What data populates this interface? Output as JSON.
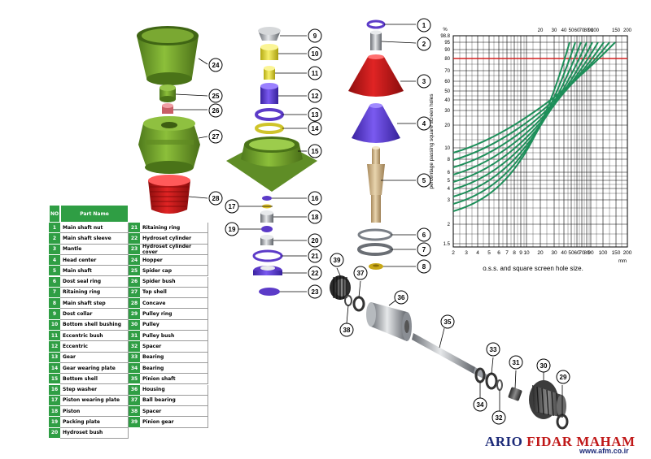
{
  "table": {
    "header_no": "NO",
    "header_name": "Part Name",
    "parts": [
      {
        "no": "1",
        "name": "Main shaft nut"
      },
      {
        "no": "2",
        "name": "Main shaft sleeve"
      },
      {
        "no": "3",
        "name": "Mantle"
      },
      {
        "no": "4",
        "name": "Head center"
      },
      {
        "no": "5",
        "name": "Main shaft"
      },
      {
        "no": "6",
        "name": "Dost seal ring"
      },
      {
        "no": "7",
        "name": "Ritaining ring"
      },
      {
        "no": "8",
        "name": "Main shaft step"
      },
      {
        "no": "9",
        "name": "Dost collar"
      },
      {
        "no": "10",
        "name": "Bottom shell bushing"
      },
      {
        "no": "11",
        "name": "Eccentric bush"
      },
      {
        "no": "12",
        "name": "Eccentric"
      },
      {
        "no": "13",
        "name": "Gear"
      },
      {
        "no": "14",
        "name": "Gear wearing plate"
      },
      {
        "no": "15",
        "name": "Bottom shell"
      },
      {
        "no": "16",
        "name": "Step washer"
      },
      {
        "no": "17",
        "name": "Piston wearing plate"
      },
      {
        "no": "18",
        "name": "Piston"
      },
      {
        "no": "19",
        "name": "Packing plate"
      },
      {
        "no": "20",
        "name": "Hydroset bush"
      },
      {
        "no": "21",
        "name": "Ritaining ring"
      },
      {
        "no": "22",
        "name": "Hydroset cylinder"
      },
      {
        "no": "23",
        "name": "Hydroset cylinder cover"
      },
      {
        "no": "24",
        "name": "Hopper"
      },
      {
        "no": "25",
        "name": "Spider cap"
      },
      {
        "no": "26",
        "name": "Spider bush"
      },
      {
        "no": "27",
        "name": "Top shell"
      },
      {
        "no": "28",
        "name": "Concave"
      },
      {
        "no": "29",
        "name": "Pulley ring"
      },
      {
        "no": "30",
        "name": "Pulley"
      },
      {
        "no": "31",
        "name": "Pulley bush"
      },
      {
        "no": "32",
        "name": "Spacer"
      },
      {
        "no": "33",
        "name": "Bearing"
      },
      {
        "no": "34",
        "name": "Bearing"
      },
      {
        "no": "35",
        "name": "Pinion shaft"
      },
      {
        "no": "36",
        "name": "Housing"
      },
      {
        "no": "37",
        "name": "Ball bearing"
      },
      {
        "no": "38",
        "name": "Spacer"
      },
      {
        "no": "39",
        "name": "Pinion gear"
      }
    ]
  },
  "callouts": [
    "1",
    "2",
    "3",
    "4",
    "5",
    "6",
    "7",
    "8",
    "9",
    "10",
    "11",
    "12",
    "13",
    "14",
    "15",
    "16",
    "17",
    "18",
    "19",
    "20",
    "21",
    "22",
    "23",
    "24",
    "25",
    "26",
    "27",
    "28",
    "29",
    "30",
    "31",
    "32",
    "33",
    "34",
    "35",
    "36",
    "37",
    "38",
    "39"
  ],
  "graph": {
    "y_unit": "%",
    "y_axis_label": "percentage passing square screen holes",
    "y_ticks": [
      "98.8",
      "95",
      "90",
      "80",
      "70",
      "60",
      "50",
      "40",
      "30",
      "20",
      "10",
      "8",
      "6",
      "5",
      "4",
      "3",
      "2",
      "1.5"
    ],
    "top_x_ticks": [
      "20",
      "30",
      "40",
      "50",
      "60",
      "70",
      "80",
      "90",
      "100",
      "150",
      "200"
    ],
    "bottom_x_ticks": [
      "2",
      "3",
      "4",
      "5",
      "6",
      "7",
      "8",
      "9",
      "10",
      "20",
      "30",
      "40",
      "50",
      "60",
      "70",
      "80",
      "90",
      "100",
      "150",
      "200"
    ],
    "x_unit": "mm",
    "x_axis_label": "o.s.s. and square screen hole size.",
    "colors": {
      "curve": "#1e8f5a",
      "grid": "#000000",
      "reference_line": "#d42020"
    }
  },
  "brand": {
    "part1": "ARIO ",
    "part2": "FIDAR MAHAM",
    "website": "www.afm.co.ir"
  },
  "colors": {
    "table_green": "#2f9e44",
    "part_green": "#6c9a2a",
    "part_red": "#c41818",
    "part_purple": "#5c3bc8",
    "part_yellow": "#e8df35",
    "brand_blue": "#1c2a78"
  }
}
